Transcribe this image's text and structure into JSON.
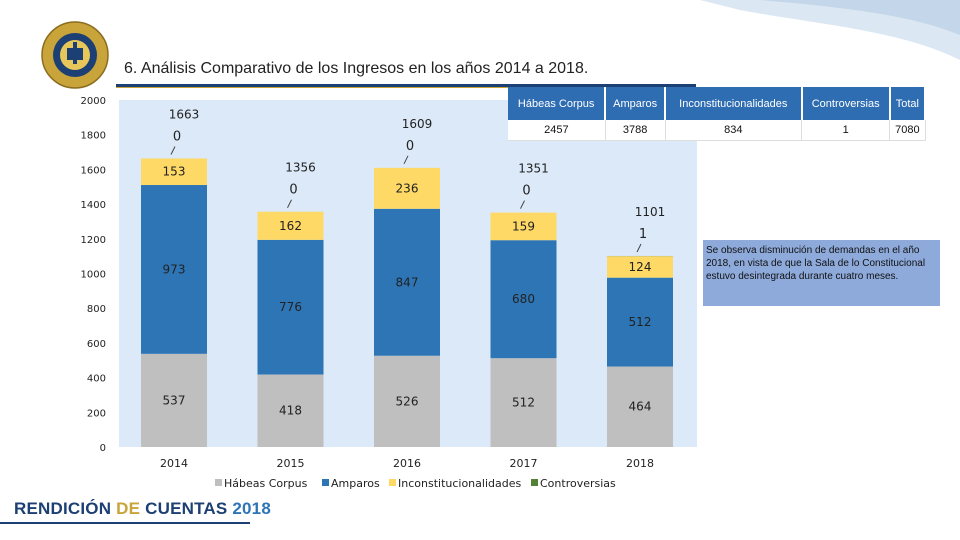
{
  "page": {
    "title": "6. Análisis Comparativo de los Ingresos en los años 2014 a 2018.",
    "footer": {
      "part1": "RENDICIÓN",
      "part2": "DE",
      "part3": "CUENTAS",
      "year": "2018"
    },
    "note": "Se observa disminución de demandas en el año 2018, en vista de que la Sala de lo Constitucional estuvo desintegrada durante cuatro meses.",
    "logo_text": "ÓRGANO JUDICIAL · CORTE SUPREMA DE JUSTICIA"
  },
  "table": {
    "headers": [
      "Hábeas Corpus",
      "Amparos",
      "Inconstitucionalidades",
      "Controversias",
      "Total"
    ],
    "values": [
      "2457",
      "3788",
      "834",
      "1",
      "7080"
    ]
  },
  "colors": {
    "habeas": "#bfbfbf",
    "amparos": "#2e75b6",
    "inconst": "#ffd966",
    "controv": "#548235",
    "plot_bg": "#dbe9f8",
    "brand_blue": "#1c3f74",
    "brand_gold": "#c8a43a"
  },
  "chart_data": {
    "type": "bar",
    "stacked": true,
    "categories": [
      "2014",
      "2015",
      "2016",
      "2017",
      "2018"
    ],
    "series": [
      {
        "name": "Hábeas Corpus",
        "values": [
          537,
          418,
          526,
          512,
          464
        ]
      },
      {
        "name": "Amparos",
        "values": [
          973,
          776,
          847,
          680,
          512
        ]
      },
      {
        "name": "Inconstitucionalidades",
        "values": [
          153,
          162,
          236,
          159,
          124
        ]
      },
      {
        "name": "Controversias",
        "values": [
          0,
          0,
          0,
          0,
          1
        ]
      }
    ],
    "totals": [
      1663,
      1356,
      1609,
      1351,
      1101
    ],
    "ylim": [
      0,
      2000
    ],
    "yticks": [
      "0",
      "200",
      "400",
      "600",
      "800",
      "1000",
      "1200",
      "1400",
      "1600",
      "1800",
      "2000"
    ],
    "legend": "bottom",
    "grid": false
  }
}
